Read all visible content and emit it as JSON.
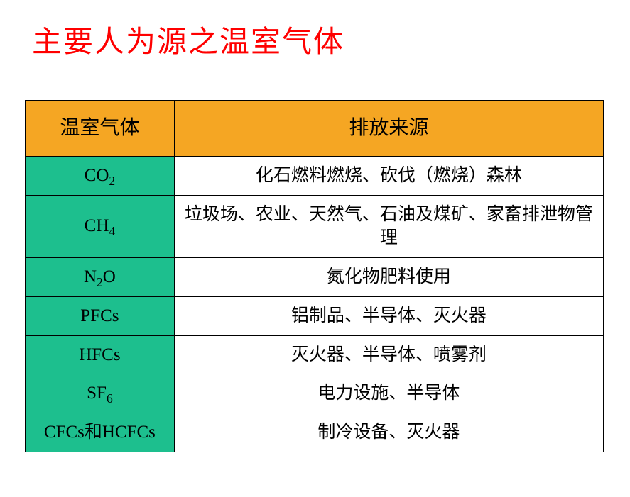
{
  "title": "主要人为源之温室气体",
  "title_color": "#ff0000",
  "table": {
    "header_bg": "#f5a623",
    "gas_col_bg": "#1dbf8e",
    "src_col_bg": "#ffffff",
    "text_color": "#000000",
    "border_color": "#000000",
    "columns": [
      "温室气体",
      "排放来源"
    ],
    "rows": [
      {
        "gas_pre": "CO",
        "gas_sub": "2",
        "gas_post": "",
        "src": "化石燃料燃烧、砍伐（燃烧）森林"
      },
      {
        "gas_pre": "CH",
        "gas_sub": "4",
        "gas_post": "",
        "src": "垃圾场、农业、天然气、石油及煤矿、家畜排泄物管理"
      },
      {
        "gas_pre": "N",
        "gas_sub": "2",
        "gas_post": "O",
        "src": "氮化物肥料使用"
      },
      {
        "gas_pre": "PFCs",
        "gas_sub": "",
        "gas_post": "",
        "src": "铝制品、半导体、灭火器"
      },
      {
        "gas_pre": "HFCs",
        "gas_sub": "",
        "gas_post": "",
        "src": "灭火器、半导体、喷雾剂"
      },
      {
        "gas_pre": "SF",
        "gas_sub": "6",
        "gas_post": "",
        "src": "电力设施、半导体"
      },
      {
        "gas_pre": "CFCs和HCFCs",
        "gas_sub": "",
        "gas_post": "",
        "src": "制冷设备、灭火器"
      }
    ]
  }
}
